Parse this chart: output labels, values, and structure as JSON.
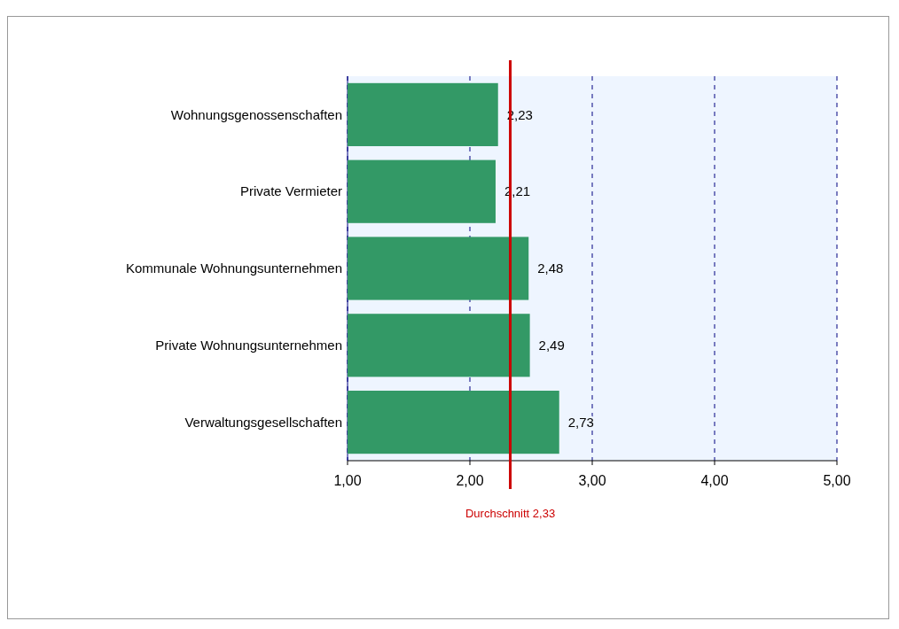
{
  "chart_data": {
    "type": "bar",
    "orientation": "horizontal",
    "categories": [
      "Wohnungsgenossenschaften",
      "Private Vermieter",
      "Kommunale Wohnungsunternehmen",
      "Private Wohnungsunternehmen",
      "Verwaltungsgesellschaften"
    ],
    "values": [
      2.23,
      2.21,
      2.48,
      2.49,
      2.73
    ],
    "value_labels": [
      "2,23",
      "2,21",
      "2,48",
      "2,49",
      "2,73"
    ],
    "color": "#339966",
    "xlim": [
      1,
      5
    ],
    "xticks": [
      {
        "value": 1,
        "label": "1,00"
      },
      {
        "value": 2,
        "label": "2,00"
      },
      {
        "value": 3,
        "label": "3,00"
      },
      {
        "value": 4,
        "label": "4,00"
      },
      {
        "value": 5,
        "label": "5,00"
      }
    ],
    "grid": "x",
    "ref_lines": [
      {
        "axis": "x",
        "value": 2.33,
        "label": "Durchschnitt 2,33",
        "color": "#cc0000"
      }
    ]
  }
}
